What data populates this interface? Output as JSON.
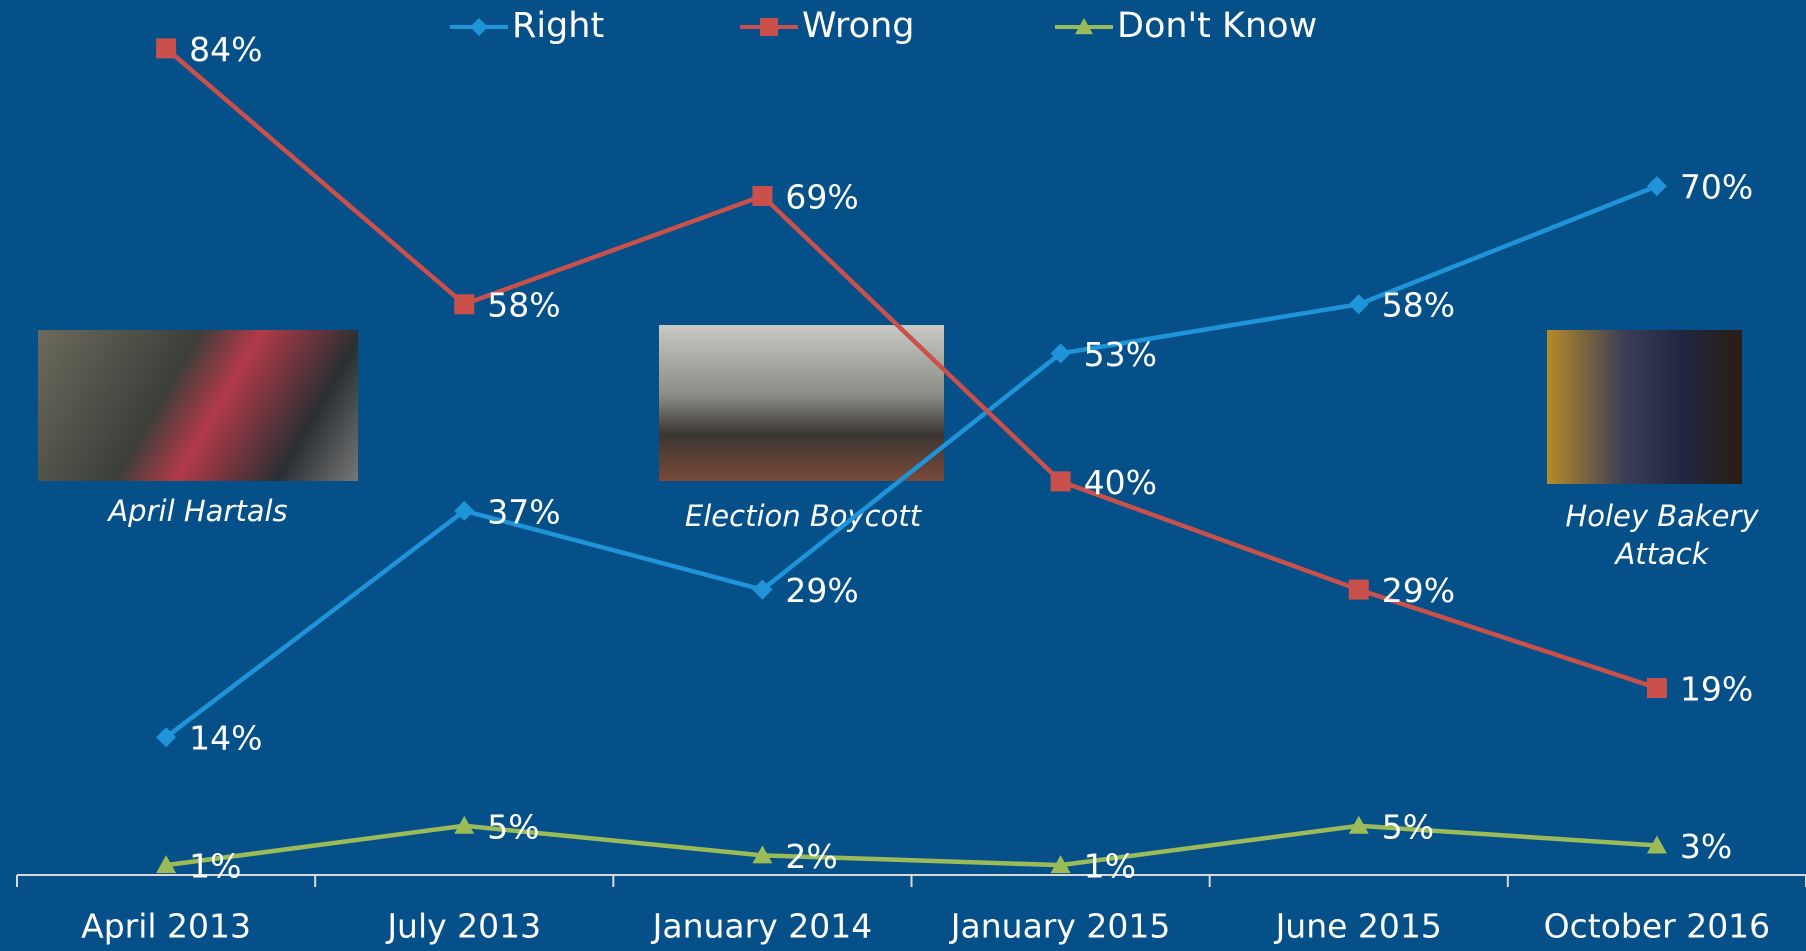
{
  "chart_data": {
    "type": "line",
    "categories": [
      "April 2013",
      "July 2013",
      "January 2014",
      "January 2015",
      "June 2015",
      "October 2016"
    ],
    "series": [
      {
        "name": "Right",
        "color": "#1f94d8",
        "marker": "diamond",
        "values": [
          14,
          37,
          29,
          53,
          58,
          70
        ],
        "value_labels": [
          "14%",
          "37%",
          "29%",
          "53%",
          "58%",
          "70%"
        ]
      },
      {
        "name": "Wrong",
        "color": "#c9504b",
        "marker": "square",
        "values": [
          84,
          58,
          69,
          40,
          29,
          19
        ],
        "value_labels": [
          "84%",
          "58%",
          "69%",
          "40%",
          "29%",
          "19%"
        ]
      },
      {
        "name": "Don't Know",
        "color": "#9bbb59",
        "marker": "triangle",
        "values": [
          1,
          5,
          2,
          1,
          5,
          3
        ],
        "value_labels": [
          "1%",
          "5%",
          "2%",
          "1%",
          "5%",
          "3%"
        ]
      }
    ],
    "ylim": [
      0,
      88
    ],
    "legend": "top",
    "annotations": [
      "April Hartals",
      "Election Boycott",
      "Holey Bakery Attack"
    ]
  }
}
